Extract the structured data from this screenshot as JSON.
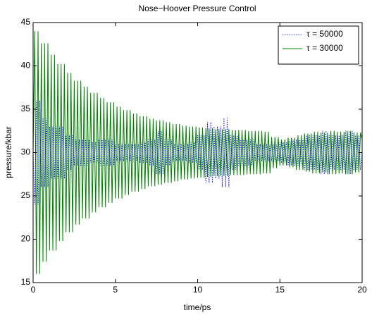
{
  "chart_data": {
    "type": "line",
    "title": "Nose−Hoover Pressure Control",
    "x_label": "time/ps",
    "y_label": "pressure/kbar",
    "xlim": [
      0,
      20
    ],
    "xticks": [
      0,
      5,
      10,
      15,
      20
    ],
    "ylim": [
      15,
      45
    ],
    "yticks": [
      15,
      20,
      25,
      30,
      35,
      40,
      45
    ],
    "grid": false,
    "legend": "upper right",
    "x": [
      0,
      0.1,
      0.2,
      0.3,
      0.4,
      0.5,
      0.6,
      0.7,
      0.8,
      0.9,
      1,
      1.1,
      1.2,
      1.3,
      1.4,
      1.5,
      1.6,
      1.7,
      1.8,
      1.9,
      2,
      2.1,
      2.2,
      2.3,
      2.4,
      2.5,
      2.6,
      2.7,
      2.8,
      2.9,
      3,
      3.1,
      3.2,
      3.3,
      3.4,
      3.5,
      3.6,
      3.7,
      3.8,
      3.9,
      4,
      4.1,
      4.2,
      4.3,
      4.4,
      4.5,
      4.6,
      4.7,
      4.8,
      4.9,
      5,
      5.1,
      5.2,
      5.3,
      5.4,
      5.5,
      5.6,
      5.7,
      5.8,
      5.9,
      6,
      6.1,
      6.2,
      6.3,
      6.4,
      6.5,
      6.6,
      6.7,
      6.8,
      6.9,
      7,
      7.1,
      7.2,
      7.3,
      7.4,
      7.5,
      7.6,
      7.7,
      7.8,
      7.9,
      8,
      8.1,
      8.2,
      8.3,
      8.4,
      8.5,
      8.6,
      8.7,
      8.8,
      8.9,
      9,
      9.1,
      9.2,
      9.3,
      9.4,
      9.5,
      9.6,
      9.7,
      9.8,
      9.9,
      10,
      10.1,
      10.2,
      10.3,
      10.4,
      10.5,
      10.6,
      10.7,
      10.8,
      10.9,
      11,
      11.1,
      11.2,
      11.3,
      11.4,
      11.5,
      11.6,
      11.7,
      11.8,
      11.9,
      12,
      12.1,
      12.2,
      12.3,
      12.4,
      12.5,
      12.6,
      12.7,
      12.8,
      12.9,
      13,
      13.1,
      13.2,
      13.3,
      13.4,
      13.5,
      13.6,
      13.7,
      13.8,
      13.9,
      14,
      14.1,
      14.2,
      14.3,
      14.4,
      14.5,
      14.6,
      14.7,
      14.8,
      14.9,
      15,
      15.1,
      15.2,
      15.3,
      15.4,
      15.5,
      15.6,
      15.7,
      15.8,
      15.9,
      16,
      16.1,
      16.2,
      16.3,
      16.4,
      16.5,
      16.6,
      16.7,
      16.8,
      16.9,
      17,
      17.1,
      17.2,
      17.3,
      17.4,
      17.5,
      17.6,
      17.7,
      17.8,
      17.9,
      18,
      18.1,
      18.2,
      18.3,
      18.4,
      18.5,
      18.6,
      18.7,
      18.8,
      18.9,
      19,
      19.1,
      19.2,
      19.3,
      19.4,
      19.5,
      19.6,
      19.7,
      19.8,
      19.9,
      20
    ],
    "series": [
      {
        "name": "τ = 50000",
        "color": "#0000ff",
        "style": "dotted",
        "values": [
          30,
          24.0,
          36.0,
          24.0,
          36.0,
          26.0,
          34.0,
          26.0,
          34.0,
          26.0,
          33.0,
          27.0,
          33.0,
          27.0,
          33.0,
          27.0,
          33.0,
          27.0,
          33.0,
          27.0,
          32.0,
          28.0,
          32.0,
          28.0,
          32.0,
          28.5,
          31.5,
          28.5,
          31.5,
          28.5,
          31.5,
          28.5,
          31.5,
          28.5,
          31.5,
          28.8,
          31.2,
          28.8,
          31.2,
          28.8,
          31.5,
          28.5,
          31.5,
          28.5,
          31.5,
          28.5,
          31.5,
          28.5,
          31.5,
          28.5,
          31.0,
          29.0,
          31.0,
          29.0,
          31.0,
          29.0,
          31.0,
          29.0,
          31.0,
          29.0,
          31.0,
          29.0,
          31.0,
          29.0,
          31.0,
          28.8,
          31.2,
          28.8,
          31.2,
          28.8,
          31.5,
          28.5,
          31.5,
          28.5,
          31.5,
          27.5,
          32.5,
          27.5,
          32.5,
          27.5,
          31.5,
          28.5,
          31.5,
          28.5,
          31.5,
          29.0,
          31.0,
          29.0,
          31.0,
          29.0,
          31.0,
          29.0,
          31.0,
          29.0,
          31.0,
          28.8,
          31.2,
          28.8,
          31.2,
          28.8,
          32.0,
          28.0,
          32.0,
          28.0,
          32.0,
          26.5,
          33.5,
          26.5,
          33.5,
          26.5,
          33.0,
          27.0,
          33.0,
          27.0,
          33.0,
          26.0,
          34.0,
          26.0,
          34.0,
          26.0,
          32.0,
          28.0,
          32.0,
          28.0,
          32.0,
          28.5,
          31.5,
          28.5,
          31.5,
          28.5,
          31.5,
          28.5,
          31.5,
          28.5,
          31.5,
          29.0,
          31.0,
          29.0,
          31.0,
          29.0,
          31.0,
          29.0,
          31.0,
          29.0,
          31.0,
          29.0,
          31.0,
          29.0,
          31.0,
          29.0,
          31.2,
          28.8,
          31.2,
          28.8,
          31.2,
          28.5,
          31.5,
          28.5,
          31.5,
          28.5,
          31.5,
          28.5,
          31.5,
          28.5,
          31.5,
          28.0,
          32.0,
          28.0,
          32.0,
          28.0,
          32.0,
          28.0,
          32.0,
          28.0,
          32.0,
          27.5,
          32.5,
          27.5,
          32.5,
          27.5,
          32.0,
          28.0,
          32.0,
          28.0,
          32.0,
          28.0,
          32.0,
          28.0,
          32.0,
          28.0,
          32.5,
          27.5,
          32.5,
          27.5,
          32.5,
          28.0,
          32.0,
          28.0,
          32.0,
          28.0,
          30.0
        ]
      },
      {
        "name": "τ = 30000",
        "color": "#008000",
        "style": "solid",
        "values": [
          30,
          44.0,
          16.0,
          44.0,
          16.0,
          42.6,
          17.4,
          42.6,
          17.4,
          42.6,
          18.7,
          41.3,
          18.7,
          41.3,
          18.7,
          40.2,
          19.8,
          40.2,
          19.8,
          40.2,
          20.8,
          39.2,
          20.8,
          39.2,
          20.8,
          38.3,
          21.7,
          38.3,
          21.7,
          38.3,
          22.4,
          37.6,
          22.4,
          37.6,
          22.4,
          36.9,
          23.1,
          36.9,
          23.1,
          36.9,
          23.7,
          36.3,
          23.7,
          36.3,
          23.7,
          35.8,
          24.2,
          35.8,
          24.2,
          35.8,
          24.7,
          35.3,
          24.7,
          35.3,
          24.7,
          34.9,
          25.1,
          34.9,
          25.1,
          34.9,
          25.5,
          34.5,
          25.5,
          34.5,
          25.5,
          34.2,
          25.8,
          34.2,
          25.8,
          34.2,
          26.1,
          33.9,
          26.1,
          33.9,
          26.1,
          33.7,
          26.3,
          33.7,
          26.3,
          33.7,
          26.5,
          33.5,
          26.5,
          33.5,
          26.5,
          33.3,
          26.7,
          33.3,
          26.7,
          33.3,
          26.9,
          33.1,
          26.9,
          33.1,
          26.9,
          33.0,
          27.0,
          33.0,
          27.0,
          33.0,
          27.1,
          32.9,
          27.1,
          32.9,
          27.1,
          32.8,
          27.2,
          32.8,
          27.2,
          32.8,
          27.3,
          32.7,
          27.3,
          32.7,
          27.3,
          32.7,
          27.3,
          32.7,
          27.3,
          32.7,
          27.4,
          32.6,
          27.4,
          32.6,
          27.4,
          32.6,
          27.4,
          32.6,
          27.4,
          32.6,
          27.5,
          32.5,
          27.5,
          32.5,
          27.5,
          32.5,
          27.5,
          32.5,
          27.5,
          32.5,
          27.6,
          32.4,
          27.6,
          32.4,
          27.6,
          31.8,
          28.2,
          31.8,
          28.2,
          31.8,
          28.5,
          31.5,
          28.5,
          31.5,
          28.5,
          31.7,
          28.3,
          31.7,
          28.3,
          31.7,
          28.0,
          32.0,
          28.0,
          32.0,
          28.0,
          32.2,
          27.8,
          32.2,
          27.8,
          32.2,
          27.6,
          32.4,
          27.6,
          32.4,
          27.6,
          32.3,
          27.7,
          32.3,
          27.7,
          32.3,
          27.5,
          32.5,
          27.5,
          32.5,
          27.5,
          32.4,
          27.6,
          32.4,
          27.6,
          32.4,
          27.5,
          32.5,
          27.5,
          32.5,
          27.5,
          32.3,
          27.7,
          32.3,
          27.7,
          32.3,
          31.5
        ]
      }
    ]
  }
}
